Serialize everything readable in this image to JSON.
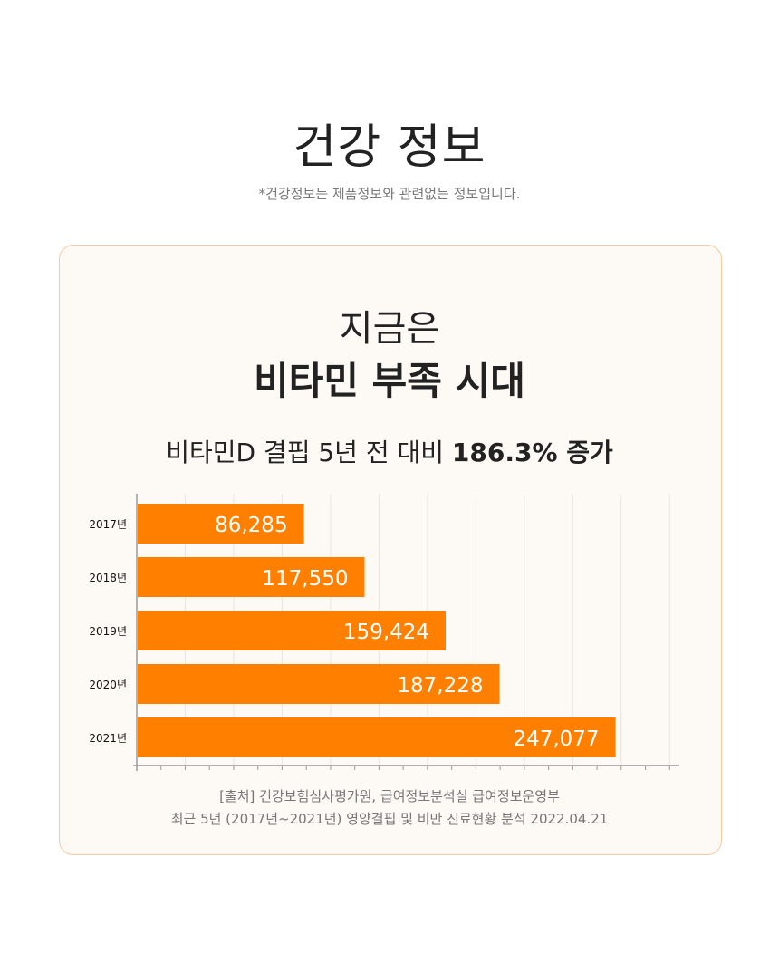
{
  "header": {
    "title": "건강 정보",
    "note": "*건강정보는 제품정보와 관련없는 정보입니다."
  },
  "card": {
    "line1": "지금은",
    "line2": "비타민 부족 시대",
    "subtitle_pre": "비타민D 결핍 5년 전 대비 ",
    "subtitle_bold": "186.3% 증가"
  },
  "source": {
    "line1": "[출처] 건강보험심사평가원, 급여정보분석실 급여정보운영부",
    "line2": "최근 5년 (2017년~2021년) 영양결핍 및 비만 진료현황 분석 2022.04.21"
  },
  "chart_data": {
    "type": "bar",
    "orientation": "horizontal",
    "categories": [
      "2017년",
      "2018년",
      "2019년",
      "2020년",
      "2021년"
    ],
    "values": [
      86285,
      117550,
      159424,
      187228,
      247077
    ],
    "value_labels": [
      "86,285",
      "117,550",
      "159,424",
      "187,228",
      "247,077"
    ],
    "xlim": [
      0,
      280000
    ],
    "grid_step": 25000,
    "grid": true,
    "bar_color": "#ff8000"
  }
}
